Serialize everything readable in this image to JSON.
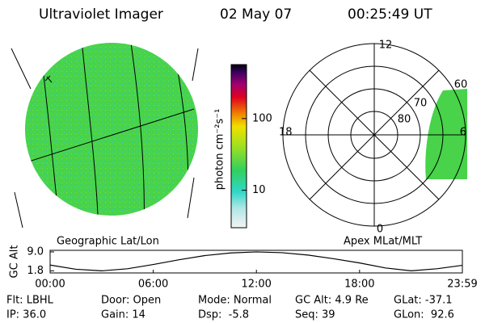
{
  "header": {
    "title": "Ultraviolet Imager",
    "date": "02 May 07",
    "time": "00:25:49 UT"
  },
  "colorbar": {
    "label": "photon cm⁻²s⁻¹",
    "lim": [
      3,
      566
    ],
    "log": true,
    "ticks": [
      10,
      100
    ]
  },
  "polar": {
    "labels": [
      "12",
      "18",
      "6",
      "0",
      "60",
      "70",
      "80"
    ]
  },
  "panels": {
    "left": "Geographic Lat/Lon",
    "right": "Apex MLat/MLT"
  },
  "chart_data": {
    "type": "line",
    "ylabel": "GC Alt",
    "color": "#000000",
    "x": [
      0,
      1.5,
      3,
      4.5,
      6,
      7.5,
      9,
      10.5,
      12,
      13.5,
      15,
      16.5,
      18,
      19.5,
      21,
      22.5,
      23.98
    ],
    "values": [
      4.0,
      2.4,
      1.8,
      2.6,
      4.2,
      6.0,
      7.6,
      8.6,
      9.0,
      8.7,
      7.8,
      6.4,
      4.8,
      2.9,
      1.8,
      2.6,
      3.9
    ],
    "xlim": [
      0,
      23.98
    ],
    "ylim": [
      1.0,
      9.6
    ],
    "xticks": [
      {
        "value": 0,
        "label": "00:00"
      },
      {
        "value": 6,
        "label": "06:00"
      },
      {
        "value": 12,
        "label": "12:00"
      },
      {
        "value": 18,
        "label": "18:00"
      },
      {
        "value": 23.98,
        "label": "23:59"
      }
    ],
    "yticks": [
      {
        "value": 1.8,
        "label": "1.8"
      },
      {
        "value": 9,
        "label": "9.0"
      }
    ]
  },
  "footer": [
    [
      "Flt: LBHL",
      "Door: Open",
      "Mode: Normal",
      "GC Alt: 4.9 Re",
      "GLat: -37.1"
    ],
    [
      "IP: 36.0",
      "Gain: 14",
      "Dsp:  -5.8",
      "Seq: 39",
      "GLon:  92.6"
    ]
  ]
}
